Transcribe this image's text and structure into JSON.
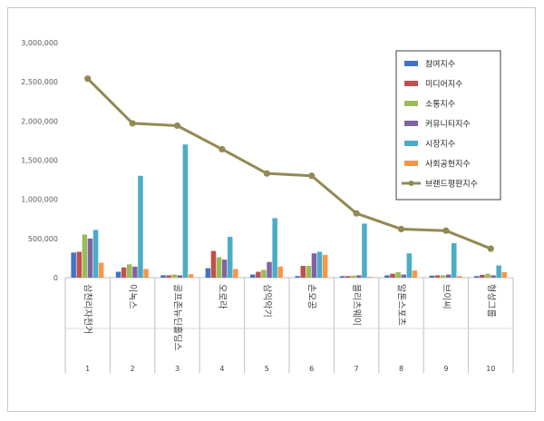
{
  "chart_data": {
    "type": "bar",
    "title": "",
    "xlabel": "",
    "ylabel": "",
    "ylim": [
      0,
      3000000
    ],
    "yticks": [
      "0",
      "500,000",
      "1,000,000",
      "1,500,000",
      "2,000,000",
      "2,500,000",
      "3,000,000"
    ],
    "grid": false,
    "legend_position": "right",
    "categories": [
      "삼천리자전거",
      "이녹스",
      "골프존뉴딘홀딩스",
      "오로라",
      "삼익악기",
      "손오공",
      "블리츠웨이",
      "알톤스포츠",
      "브이씨",
      "형성그룹"
    ],
    "category_numbers": [
      "1",
      "2",
      "3",
      "4",
      "5",
      "6",
      "7",
      "8",
      "9",
      "10"
    ],
    "series": [
      {
        "name": "참여지수",
        "kind": "bar",
        "color": "#4472C4",
        "values": [
          320000,
          75000,
          30000,
          120000,
          40000,
          20000,
          20000,
          30000,
          25000,
          20000
        ]
      },
      {
        "name": "미디어지수",
        "kind": "bar",
        "color": "#C0504D",
        "values": [
          330000,
          130000,
          30000,
          340000,
          75000,
          150000,
          20000,
          50000,
          30000,
          35000
        ]
      },
      {
        "name": "소통지수",
        "kind": "bar",
        "color": "#9BBB59",
        "values": [
          550000,
          170000,
          40000,
          260000,
          100000,
          150000,
          25000,
          70000,
          30000,
          50000
        ]
      },
      {
        "name": "커뮤니티지수",
        "kind": "bar",
        "color": "#8064A2",
        "values": [
          500000,
          140000,
          30000,
          230000,
          200000,
          310000,
          30000,
          40000,
          40000,
          30000
        ]
      },
      {
        "name": "시장지수",
        "kind": "bar",
        "color": "#4BACC6",
        "values": [
          610000,
          1300000,
          1700000,
          520000,
          760000,
          330000,
          690000,
          310000,
          440000,
          155000
        ]
      },
      {
        "name": "사회공헌지수",
        "kind": "bar",
        "color": "#F79646",
        "values": [
          190000,
          110000,
          45000,
          110000,
          140000,
          290000,
          10000,
          90000,
          20000,
          70000
        ]
      },
      {
        "name": "브랜드평판지수",
        "kind": "line",
        "color": "#938953",
        "values": [
          2540000,
          1970000,
          1940000,
          1640000,
          1330000,
          1300000,
          820000,
          620000,
          600000,
          370000
        ]
      }
    ]
  }
}
